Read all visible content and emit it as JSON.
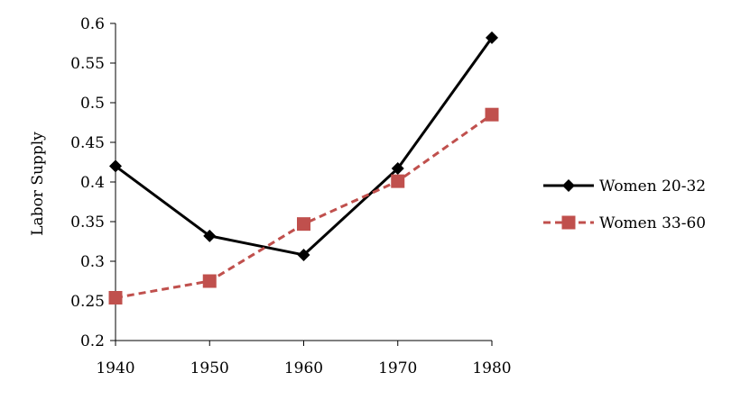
{
  "chart_data": {
    "type": "line",
    "title": "",
    "xlabel": "",
    "ylabel": "Labor Supply",
    "x": [
      1940,
      1950,
      1960,
      1970,
      1980
    ],
    "x_tick_labels": [
      "1940",
      "1950",
      "1960",
      "1970",
      "1980"
    ],
    "y_tick_labels": [
      "0.2",
      "0.25",
      "0.3",
      "0.35",
      "0.4",
      "0.45",
      "0.5",
      "0.55",
      "0.6"
    ],
    "ylim": [
      0.2,
      0.6
    ],
    "grid": false,
    "legend_position": "right",
    "series": [
      {
        "name": "Women 20-32",
        "values": [
          0.42,
          0.332,
          0.308,
          0.417,
          0.582
        ],
        "color": "#000000",
        "line_style": "solid",
        "marker": "diamond"
      },
      {
        "name": "Women 33-60",
        "values": [
          0.254,
          0.275,
          0.347,
          0.401,
          0.485
        ],
        "color": "#C0504D",
        "line_style": "dashed",
        "marker": "square"
      }
    ]
  }
}
